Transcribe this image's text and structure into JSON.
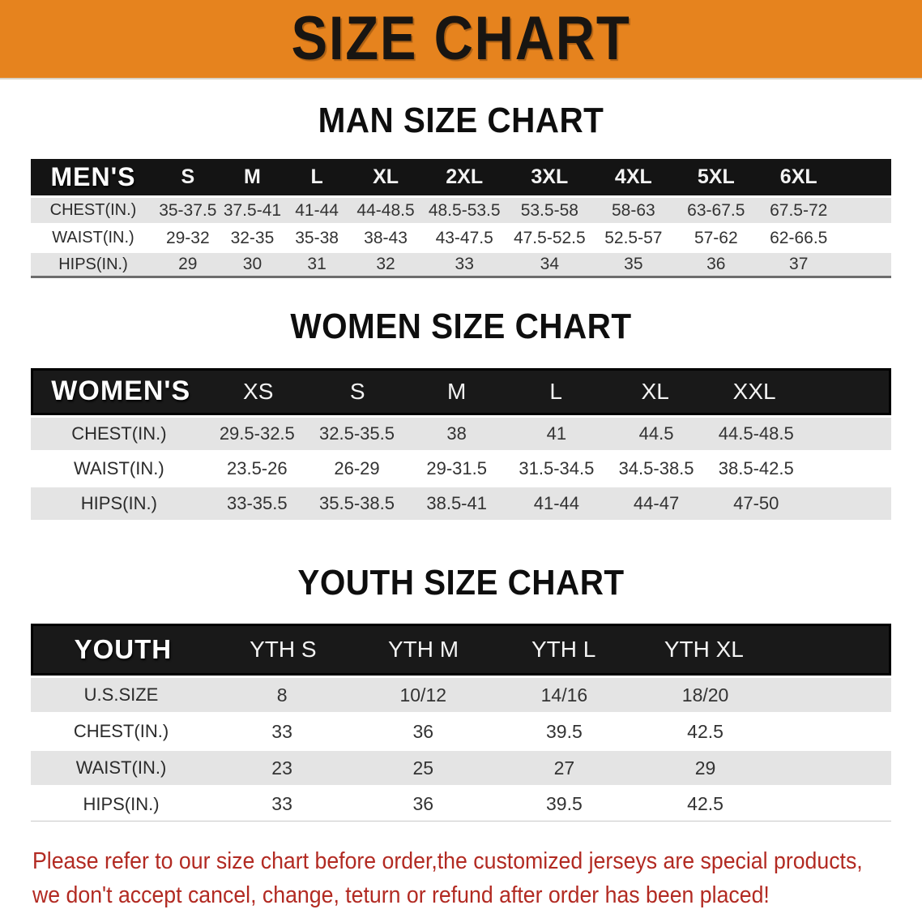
{
  "banner": {
    "title": "SIZE CHART",
    "bg_color": "#E6831E",
    "text_color": "#181512"
  },
  "sections": {
    "men": {
      "heading": "MAN SIZE CHART",
      "header": {
        "label": "MEN'S",
        "sizes": [
          "S",
          "M",
          "L",
          "XL",
          "2XL",
          "3XL",
          "4XL",
          "5XL",
          "6XL"
        ]
      },
      "rows": [
        {
          "label": "CHEST(IN.)",
          "values": [
            "35-37.5",
            "37.5-41",
            "41-44",
            "44-48.5",
            "48.5-53.5",
            "53.5-58",
            "58-63",
            "63-67.5",
            "67.5-72"
          ]
        },
        {
          "label": "WAIST(IN.)",
          "values": [
            "29-32",
            "32-35",
            "35-38",
            "38-43",
            "43-47.5",
            "47.5-52.5",
            "52.5-57",
            "57-62",
            "62-66.5"
          ]
        },
        {
          "label": "HIPS(IN.)",
          "values": [
            "29",
            "30",
            "31",
            "32",
            "33",
            "34",
            "35",
            "36",
            "37"
          ]
        }
      ]
    },
    "women": {
      "heading": "WOMEN SIZE CHART",
      "header": {
        "label": "WOMEN'S",
        "sizes": [
          "XS",
          "S",
          "M",
          "L",
          "XL",
          "XXL"
        ]
      },
      "rows": [
        {
          "label": "CHEST(IN.)",
          "values": [
            "29.5-32.5",
            "32.5-35.5",
            "38",
            "41",
            "44.5",
            "44.5-48.5"
          ]
        },
        {
          "label": "WAIST(IN.)",
          "values": [
            "23.5-26",
            "26-29",
            "29-31.5",
            "31.5-34.5",
            "34.5-38.5",
            "38.5-42.5"
          ]
        },
        {
          "label": "HIPS(IN.)",
          "values": [
            "33-35.5",
            "35.5-38.5",
            "38.5-41",
            "41-44",
            "44-47",
            "47-50"
          ]
        }
      ]
    },
    "youth": {
      "heading": "YOUTH SIZE CHART",
      "header": {
        "label": "YOUTH",
        "sizes": [
          "YTH S",
          "YTH M",
          "YTH L",
          "YTH XL"
        ]
      },
      "rows": [
        {
          "label": "U.S.SIZE",
          "values": [
            "8",
            "10/12",
            "14/16",
            "18/20"
          ]
        },
        {
          "label": "CHEST(IN.)",
          "values": [
            "33",
            "36",
            "39.5",
            "42.5"
          ]
        },
        {
          "label": "WAIST(IN.)",
          "values": [
            "23",
            "25",
            "27",
            "29"
          ]
        },
        {
          "label": "HIPS(IN.)",
          "values": [
            "33",
            "36",
            "39.5",
            "42.5"
          ]
        }
      ]
    }
  },
  "disclaimer": {
    "line1": "Please refer to our size chart before order,the customized jerseys are special products,",
    "line2": "we don't accept cancel, change, teturn or refund after order has been placed!",
    "color": "#B22A22"
  },
  "colors": {
    "header_bar": "#141414",
    "stripe_gray": "#E4E4E4",
    "stripe_white": "#FFFFFF"
  }
}
